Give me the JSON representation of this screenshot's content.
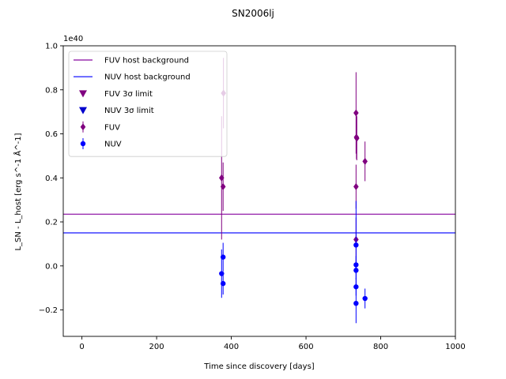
{
  "chart_data": {
    "type": "scatter",
    "title": "SN2006lj",
    "xlabel": "Time since discovery [days]",
    "ylabel": "L_SN - L_host [erg s^-1 Å^-1]",
    "y_scale_label": "1e40",
    "xlim": [
      -50,
      1000
    ],
    "ylim": [
      -0.32,
      1.0
    ],
    "x_ticks": [
      0,
      200,
      400,
      600,
      800,
      1000
    ],
    "x_tick_labels": [
      "0",
      "200",
      "400",
      "600",
      "800",
      "1000"
    ],
    "y_ticks": [
      -0.2,
      0.0,
      0.2,
      0.4,
      0.6,
      0.8,
      1.0
    ],
    "y_tick_labels": [
      "−0.2",
      "0.0",
      "0.2",
      "0.4",
      "0.6",
      "0.8",
      "1.0"
    ],
    "grid": false,
    "legend_position": "top-left",
    "hlines": [
      {
        "name": "FUV host background",
        "y": 0.235,
        "color": "#9b30b0"
      },
      {
        "name": "NUV host background",
        "y": 0.15,
        "color": "#2b2bff"
      }
    ],
    "limits": [
      {
        "name": "FUV 3σ limit",
        "color": "#800080",
        "points": []
      },
      {
        "name": "NUV 3σ limit",
        "color": "#0000cd",
        "points": []
      }
    ],
    "series": [
      {
        "name": "FUV",
        "color": "#800080",
        "marker": "diamond",
        "points": [
          {
            "x": 374,
            "y": 0.4,
            "err": 0.28
          },
          {
            "x": 378,
            "y": 0.36,
            "err": 0.11
          },
          {
            "x": 379,
            "y": 0.785,
            "err": 0.16
          },
          {
            "x": 734,
            "y": 0.695,
            "err": 0.185
          },
          {
            "x": 735,
            "y": 0.585,
            "err": 0.1
          },
          {
            "x": 736,
            "y": 0.58,
            "err": 0.1
          },
          {
            "x": 734,
            "y": 0.36,
            "err": 0.1
          },
          {
            "x": 734,
            "y": 0.12,
            "err": 0.1
          },
          {
            "x": 758,
            "y": 0.475,
            "err": 0.09
          }
        ]
      },
      {
        "name": "NUV",
        "color": "#0000ff",
        "marker": "circle",
        "points": [
          {
            "x": 374,
            "y": -0.035,
            "err": 0.11
          },
          {
            "x": 378,
            "y": 0.04,
            "err": 0.065
          },
          {
            "x": 378,
            "y": -0.08,
            "err": 0.05
          },
          {
            "x": 734,
            "y": 0.095,
            "err": 0.2
          },
          {
            "x": 734,
            "y": 0.005,
            "err": 0.04
          },
          {
            "x": 734,
            "y": -0.02,
            "err": 0.04
          },
          {
            "x": 734,
            "y": -0.095,
            "err": 0.04
          },
          {
            "x": 734,
            "y": -0.17,
            "err": 0.09
          },
          {
            "x": 758,
            "y": -0.148,
            "err": 0.045
          }
        ]
      }
    ]
  },
  "legend": {
    "entries": [
      {
        "label": "FUV host background",
        "kind": "line",
        "color": "#9b30b0"
      },
      {
        "label": "NUV host background",
        "kind": "line",
        "color": "#2b2bff"
      },
      {
        "label": "FUV 3σ limit",
        "kind": "triangle",
        "color": "#800080"
      },
      {
        "label": "NUV 3σ limit",
        "kind": "triangle",
        "color": "#0000cd"
      },
      {
        "label": "FUV",
        "kind": "diamond",
        "color": "#800080"
      },
      {
        "label": "NUV",
        "kind": "circle",
        "color": "#0000ff"
      }
    ]
  }
}
